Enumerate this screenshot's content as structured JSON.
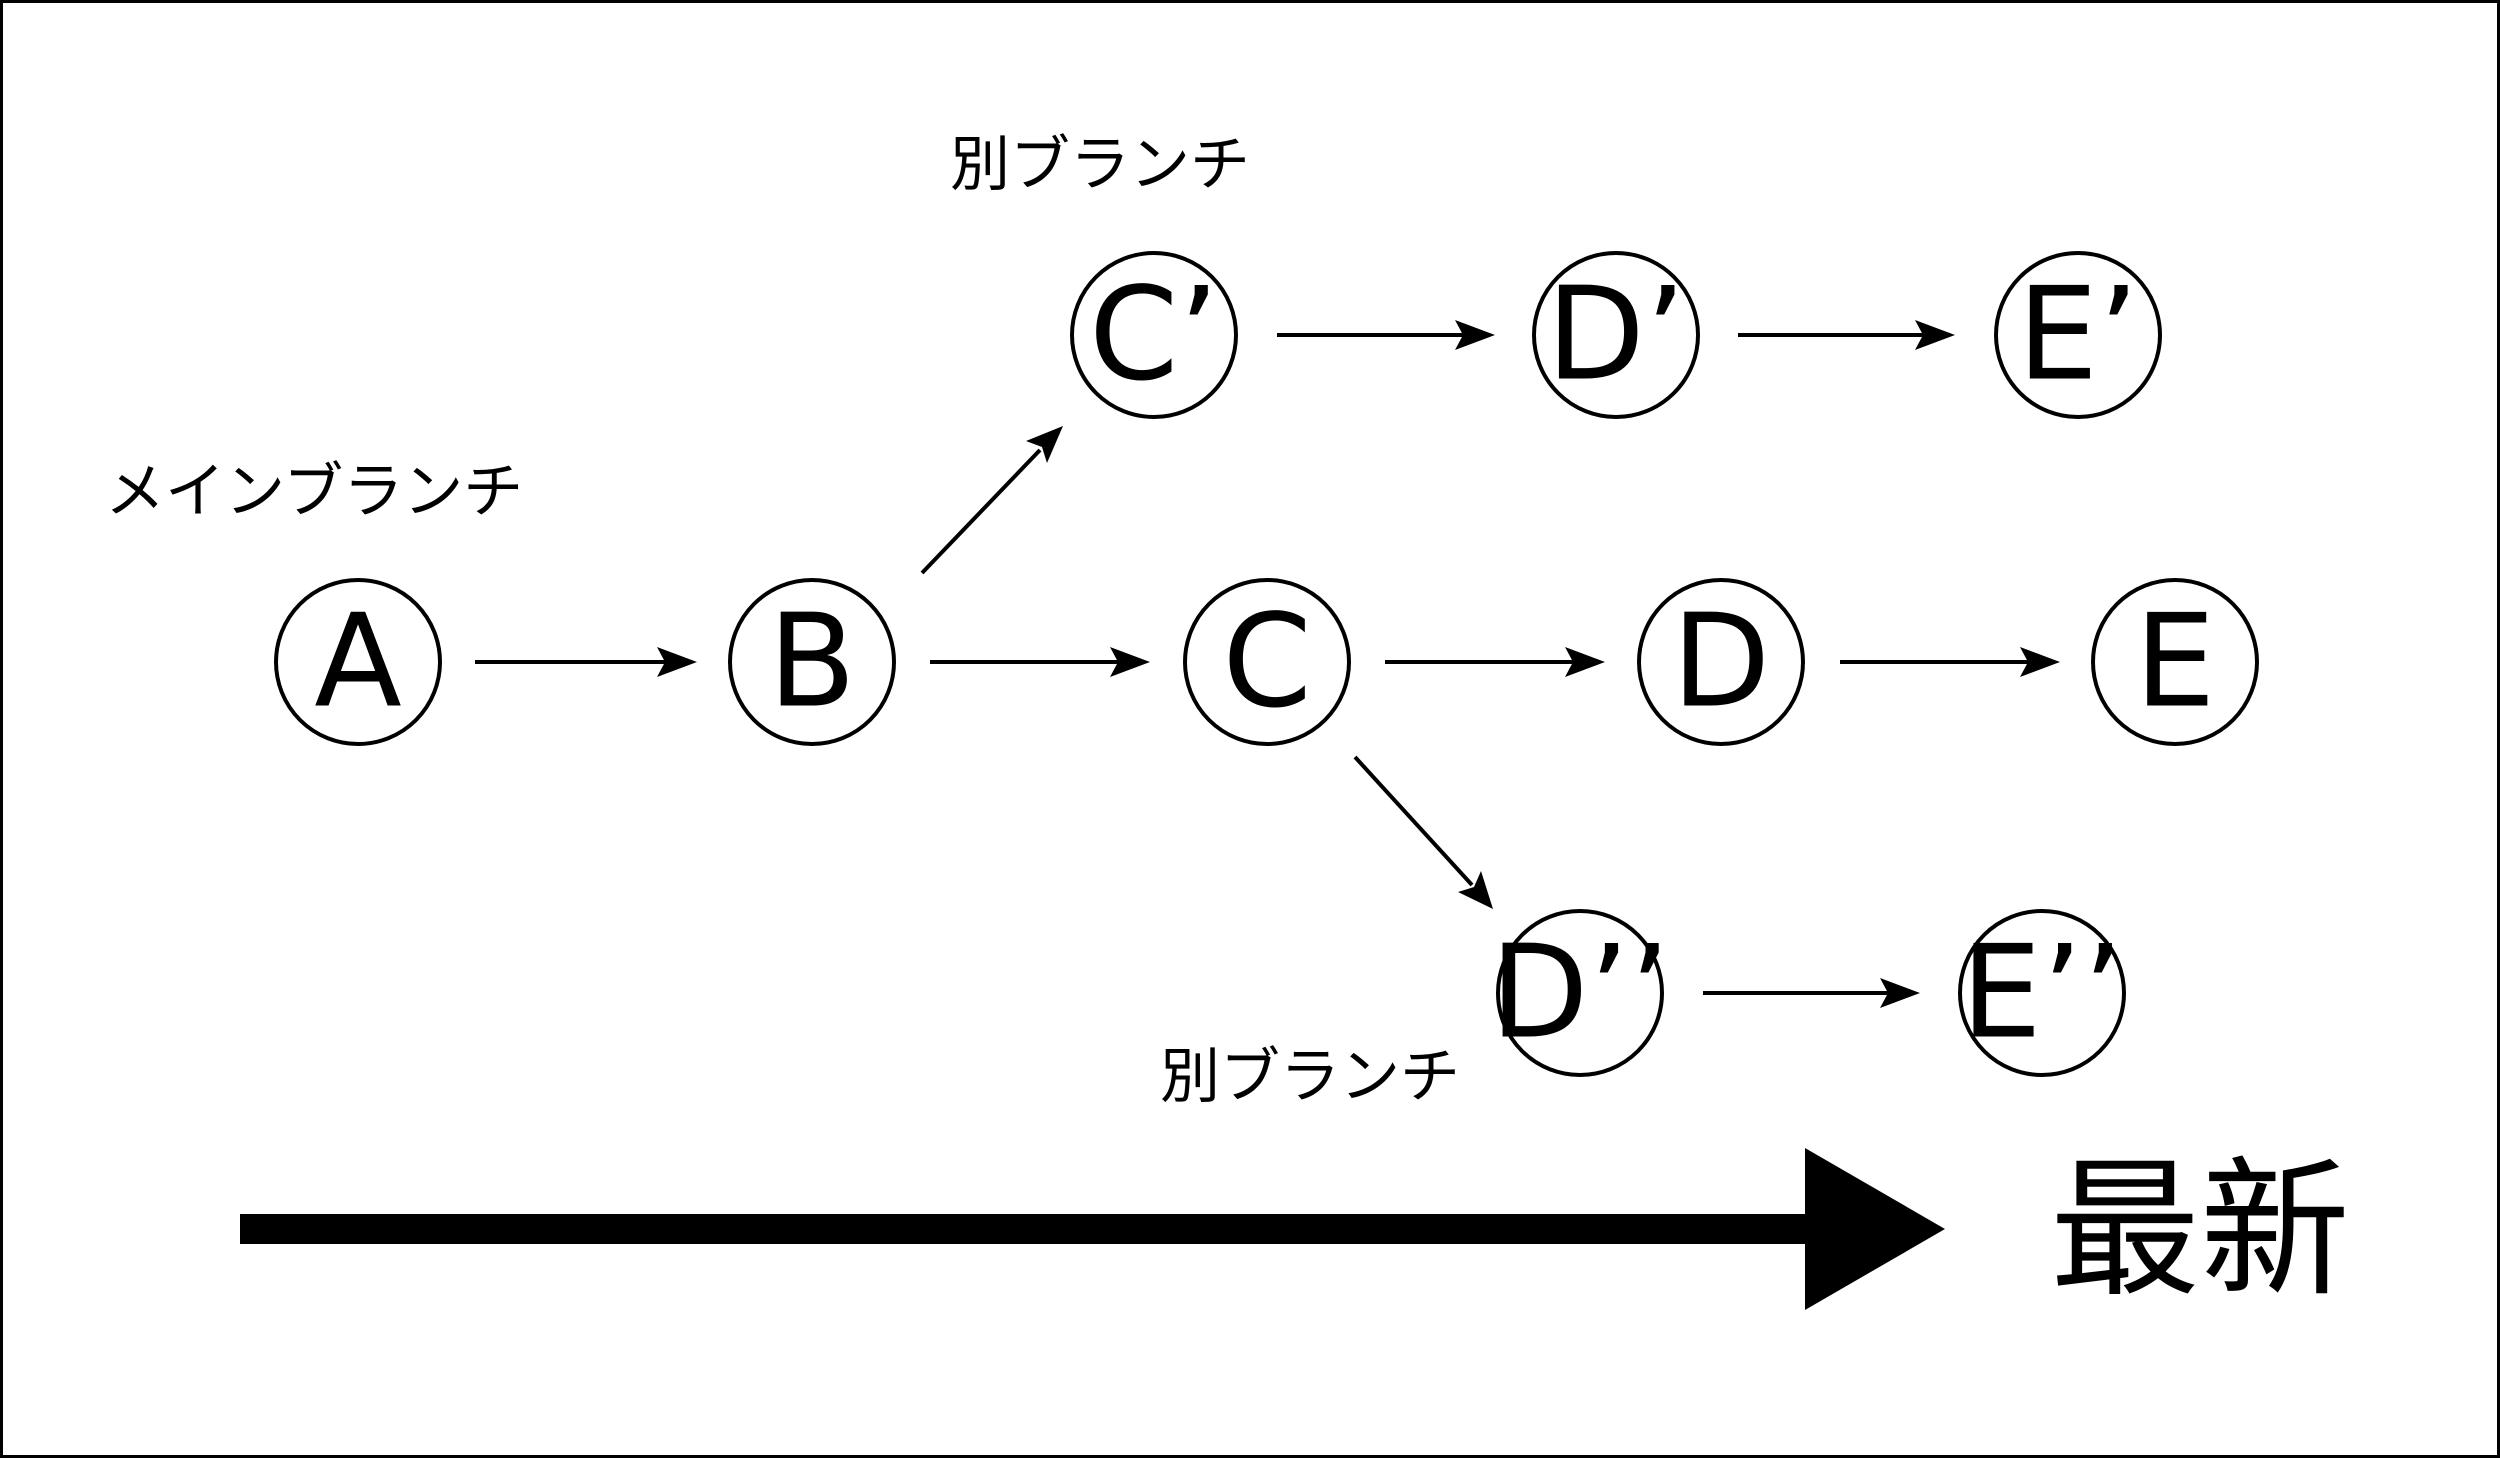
{
  "labels": {
    "main_branch": "メインブランチ",
    "other_branch_upper": "別ブランチ",
    "other_branch_lower": "別ブランチ"
  },
  "nodes": {
    "A": "A",
    "B": "B",
    "C": "C",
    "D": "D",
    "E": "E",
    "C_prime": "C’",
    "D_prime": "D’",
    "E_prime": "E’",
    "D_double": "D’’",
    "E_double": "E’’"
  },
  "timeline": {
    "label": "最新"
  }
}
